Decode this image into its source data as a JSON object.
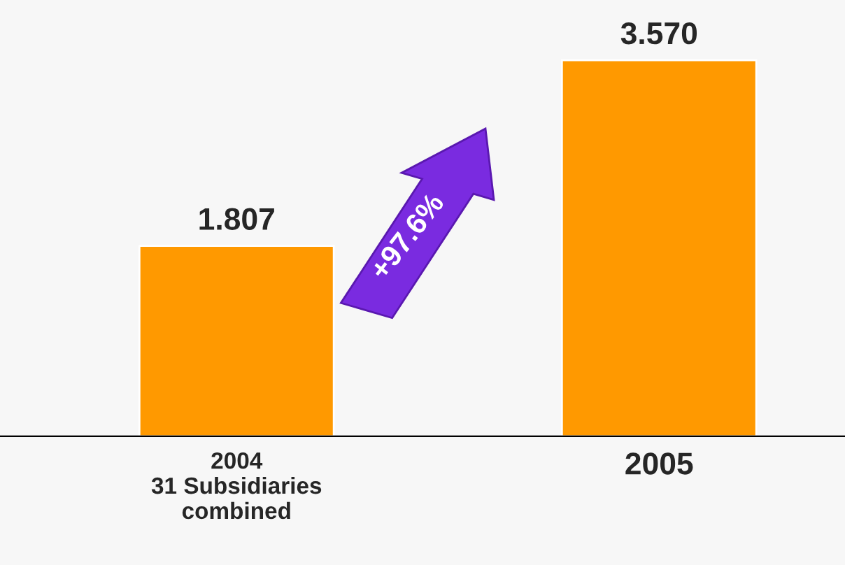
{
  "chart_data": {
    "type": "bar",
    "categories": [
      "2004\n31 Subsidiaries\ncombined",
      "2005"
    ],
    "values": [
      1.807,
      3.57
    ],
    "color": "#ff9900",
    "data_labels": true,
    "value_labels": [
      "1.807",
      "3.570"
    ],
    "annotations": [
      "+97.6%"
    ]
  }
}
